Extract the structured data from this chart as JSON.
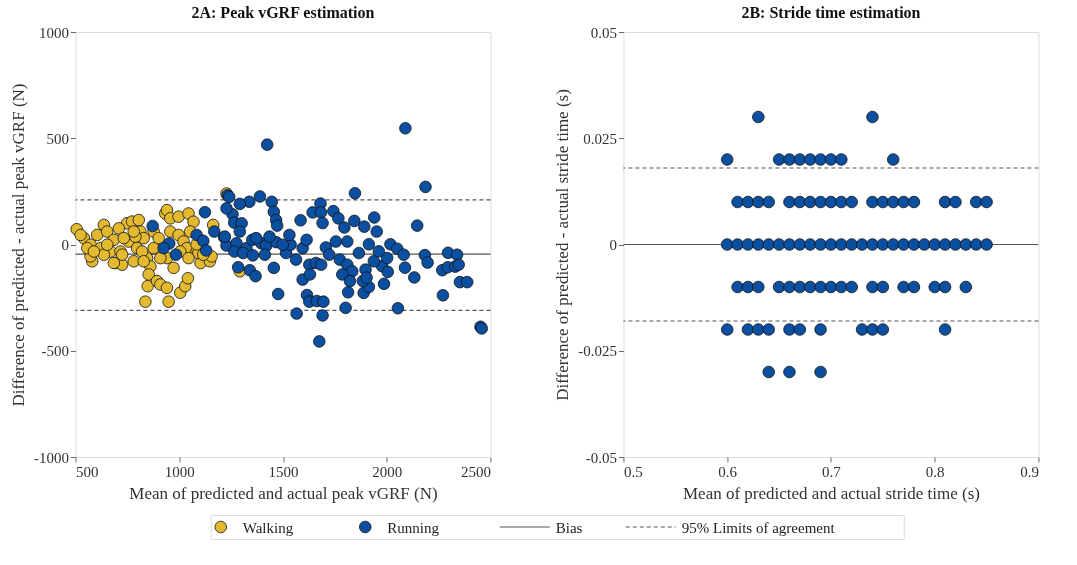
{
  "chart_data": [
    {
      "type": "scatter",
      "title": "2A: Peak vGRF estimation",
      "xlabel": "Mean of predicted and actual peak vGRF (N)",
      "ylabel": "Difference of predicted - actual peak vGRF (N)",
      "xlim": [
        500,
        2500
      ],
      "xticks": [
        500,
        1000,
        1500,
        2000,
        2500
      ],
      "ylim": [
        -1000,
        1000
      ],
      "yticks": [
        -1000,
        -500,
        0,
        500,
        1000
      ],
      "grid": false,
      "legend": "bottom",
      "marker": "circle",
      "series": [
        {
          "name": "Walking",
          "color": "#e3b92f",
          "x": [
            506,
            541,
            573,
            581,
            605,
            637,
            653,
            621,
            669,
            685,
            693,
            725,
            717,
            749,
            773,
            805,
            757,
            797,
            813,
            829,
            845,
            861,
            853,
            848,
            837,
            893,
            909,
            941,
            949,
            1005,
            1029,
            1042,
            973,
            941,
            909,
            933,
            941,
            957,
            997,
            1045,
            1069,
            1053,
            957,
            997,
            1021,
            1037,
            1084,
            1103,
            1148,
            1156,
            1164,
            1228,
            1292,
            1092,
            1116,
            709,
            733,
            789,
            821,
            877,
            573,
            637,
            685,
            725,
            781,
            829,
            525,
            557,
            589,
            653,
            781,
            877,
            901,
            1005,
            1045,
            1084
          ],
          "values": [
            72,
            30,
            -1,
            -79,
            45,
            92,
            61,
            -17,
            -33,
            22,
            -87,
            -95,
            -33,
            100,
            108,
            115,
            14,
            -17,
            61,
            30,
            -64,
            -103,
            -141,
            -196,
            -269,
            -172,
            -188,
            -204,
            -269,
            -227,
            -196,
            -159,
            -110,
            -64,
            -64,
            146,
            162,
            123,
            131,
            146,
            107,
            61,
            61,
            45,
            14,
            -17,
            -33,
            -87,
            -79,
            -56,
            92,
            240,
            -126,
            -40,
            -48,
            76,
            30,
            37,
            -33,
            -17,
            -56,
            -48,
            -87,
            -48,
            -79,
            -79,
            45,
            -17,
            -33,
            -1,
            61,
            61,
            30,
            -33,
            -64,
            1
          ]
        },
        {
          "name": "Running",
          "color": "#0b4fa1",
          "x": [
            1424,
            2090,
            2187,
            1847,
            2147,
            2452,
            2458,
            1675,
            1566,
            1691,
            2054,
            1802,
            2271,
            2353,
            2388,
            1477,
            1616,
            1627,
            1663,
            1695,
            1814,
            1889,
            1914,
            1987,
            2133,
            1595,
            1456,
            1284,
            1340,
            1368,
            1124,
            1233,
            1241,
            1389,
            1338,
            1292,
            1446,
            1456,
            1467,
            1472,
            1585,
            1681,
            1643,
            1683,
            1743,
            1767,
            1796,
            1691,
            1844,
            1892,
            1940,
            1952,
            2296,
            2339,
            2184,
            2197,
            2268,
            2294,
            2330,
            2347,
            2018,
            2051,
            2082,
            2088,
            1978,
            2005,
            872,
            952,
            984,
            925,
            1084,
            1116,
            1130,
            1169,
            1217,
            1228,
            1257,
            1265,
            1301,
            1292,
            1228,
            1220,
            1276,
            1324,
            1352,
            1395,
            1419,
            1467,
            1266,
            1308,
            1355,
            1413,
            1515,
            1537,
            1563,
            1595,
            1614,
            1627,
            1659,
            1707,
            1723,
            1755,
            1810,
            1774,
            1810,
            1834,
            1866,
            1914,
            1938,
            1898,
            1962,
            2002,
            1786,
            1823,
            1885,
            1903,
            1630,
            1684,
            1499,
            1531,
            1371,
            1435
          ],
          "values": [
            470,
            547,
            271,
            241,
            89,
            -387,
            -395,
            -456,
            -325,
            -334,
            -300,
            -298,
            -239,
            -177,
            -177,
            -233,
            -238,
            -269,
            -266,
            -269,
            -225,
            -228,
            -200,
            -185,
            -155,
            -165,
            -110,
            -107,
            -121,
            -149,
            152,
            232,
            224,
            226,
            201,
            191,
            201,
            154,
            115,
            89,
            114,
            193,
            151,
            151,
            157,
            123,
            80,
            101,
            111,
            84,
            127,
            61,
            -39,
            -48,
            -50,
            -85,
            -121,
            -107,
            -104,
            -95,
            1,
            -20,
            -48,
            -109,
            -102,
            -129,
            87,
            5,
            -48,
            -17,
            45,
            17,
            -28,
            61,
            34,
            -5,
            142,
            103,
            100,
            61,
            170,
            37,
            6,
            -17,
            22,
            6,
            -6,
            11,
            -33,
            -40,
            -51,
            -48,
            -40,
            -1,
            -71,
            -17,
            22,
            -95,
            -87,
            -14,
            -48,
            14,
            14,
            -71,
            -95,
            -126,
            -40,
            1,
            -79,
            -118,
            -32,
            -64,
            -141,
            -172,
            -172,
            -156,
            -141,
            -95,
            -1,
            45,
            30,
            37
          ]
        }
      ],
      "ref_lines": [
        {
          "axis": "y",
          "value": -45,
          "label": "Bias",
          "line_style": "solid",
          "color": "#555555"
        },
        {
          "axis": "y",
          "value": 210,
          "label": "95% Limits of agreement",
          "line_style": "dashed",
          "color": "#555555"
        },
        {
          "axis": "y",
          "value": -310,
          "line_style": "dashed",
          "color": "#555555"
        }
      ]
    },
    {
      "type": "scatter",
      "title": "2B: Stride time estimation",
      "xlabel": "Mean of predicted and actual stride time (s)",
      "ylabel": "Difference of predicted - actual stride time (s)",
      "xlim": [
        0.5,
        0.9
      ],
      "xticks": [
        0.5,
        0.6,
        0.7,
        0.8,
        0.9
      ],
      "ylim": [
        -0.05,
        0.05
      ],
      "yticks": [
        -0.05,
        -0.025,
        0,
        0.025,
        0.05
      ],
      "grid": false,
      "marker": "circle",
      "series": [
        {
          "color": "#0b4fa1",
          "x": [
            0.63,
            0.74,
            0.6,
            0.65,
            0.66,
            0.67,
            0.68,
            0.69,
            0.7,
            0.71,
            0.76,
            0.61,
            0.62,
            0.63,
            0.64,
            0.66,
            0.67,
            0.68,
            0.69,
            0.7,
            0.71,
            0.72,
            0.74,
            0.75,
            0.76,
            0.77,
            0.78,
            0.81,
            0.82,
            0.84,
            0.85,
            0.6,
            0.61,
            0.62,
            0.63,
            0.64,
            0.65,
            0.66,
            0.67,
            0.68,
            0.69,
            0.7,
            0.71,
            0.72,
            0.73,
            0.74,
            0.75,
            0.76,
            0.77,
            0.78,
            0.79,
            0.8,
            0.81,
            0.82,
            0.83,
            0.84,
            0.85,
            0.61,
            0.62,
            0.63,
            0.65,
            0.66,
            0.67,
            0.68,
            0.69,
            0.7,
            0.71,
            0.72,
            0.74,
            0.75,
            0.77,
            0.78,
            0.8,
            0.81,
            0.83,
            0.6,
            0.62,
            0.63,
            0.64,
            0.66,
            0.67,
            0.69,
            0.73,
            0.74,
            0.75,
            0.81,
            0.64,
            0.66,
            0.69
          ],
          "values": [
            0.03,
            0.03,
            0.02,
            0.02,
            0.02,
            0.02,
            0.02,
            0.02,
            0.02,
            0.02,
            0.02,
            0.01,
            0.01,
            0.01,
            0.01,
            0.01,
            0.01,
            0.01,
            0.01,
            0.01,
            0.01,
            0.01,
            0.01,
            0.01,
            0.01,
            0.01,
            0.01,
            0.01,
            0.01,
            0.01,
            0.01,
            0,
            0,
            0,
            0,
            0,
            0,
            0,
            0,
            0,
            0,
            0,
            0,
            0,
            0,
            0,
            0,
            0,
            0,
            0,
            0,
            0,
            0,
            0,
            0,
            0,
            0,
            -0.01,
            -0.01,
            -0.01,
            -0.01,
            -0.01,
            -0.01,
            -0.01,
            -0.01,
            -0.01,
            -0.01,
            -0.01,
            -0.01,
            -0.01,
            -0.01,
            -0.01,
            -0.01,
            -0.01,
            -0.01,
            -0.02,
            -0.02,
            -0.02,
            -0.02,
            -0.02,
            -0.02,
            -0.02,
            -0.02,
            -0.02,
            -0.02,
            -0.02,
            -0.03,
            -0.03,
            -0.03
          ]
        }
      ],
      "ref_lines": [
        {
          "axis": "y",
          "value": 0,
          "line_style": "solid",
          "color": "#555555"
        },
        {
          "axis": "y",
          "value": 0.018,
          "line_style": "dashed",
          "color": "#555555"
        },
        {
          "axis": "y",
          "value": -0.018,
          "line_style": "dashed",
          "color": "#555555"
        }
      ]
    }
  ]
}
